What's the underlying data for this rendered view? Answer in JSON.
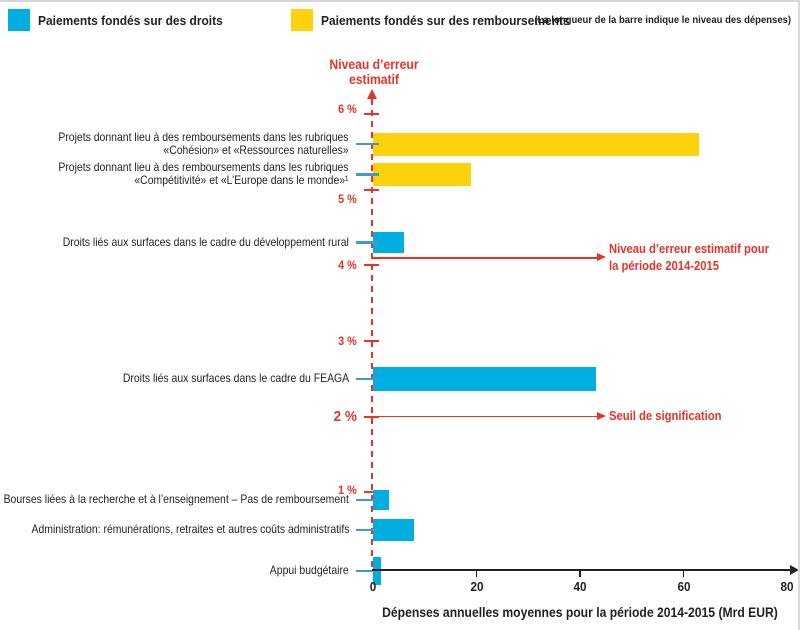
{
  "header": {
    "legend": [
      {
        "key": "droits",
        "label": "Paiements fondés sur des droits",
        "color": "#00AEDF"
      },
      {
        "key": "remboursements",
        "label": "Paiements fondés sur des remboursements",
        "color": "#FBD20B"
      }
    ],
    "note": "(La longueur de la barre indique le niveau des dépenses)"
  },
  "chart_data": {
    "type": "bar",
    "orientation": "horizontal",
    "xlabel": "Dépenses annuelles moyennes pour la période 2014-2015 (Mrd EUR)",
    "x_axis": {
      "min": 0,
      "max": 80,
      "tick_values": [
        0,
        20,
        40,
        60,
        80
      ],
      "unit": "Mrd EUR"
    },
    "y_axis": {
      "title_lines": [
        "Niveau d’erreur",
        "estimatif"
      ],
      "unit": "%",
      "min": 0,
      "max": 6,
      "ticks": [
        {
          "label": "6 %",
          "value": 6
        },
        {
          "label": "5 %",
          "value": 5
        },
        {
          "label": "4 %",
          "value": 4
        },
        {
          "label": "3 %",
          "value": 3
        },
        {
          "label": "2 %",
          "value": 2,
          "emphasis": true
        },
        {
          "label": "1 %",
          "value": 1
        }
      ]
    },
    "rows": [
      {
        "label_lines": [
          "Projets donnant lieu à des remboursements dans les rubriques",
          "«Cohésion» et «Ressources naturelles»"
        ],
        "category": "remboursements",
        "spending_mrd_eur": 63,
        "error_pct": 5.6
      },
      {
        "label_lines": [
          "Projets donnant lieu à des remboursements dans les rubriques",
          "«Compétitivité» et «L’Europe dans le monde»¹"
        ],
        "category": "remboursements",
        "spending_mrd_eur": 19,
        "error_pct": 5.2
      },
      {
        "label_lines": [
          "Droits liés aux surfaces dans le cadre du développement rural"
        ],
        "category": "droits",
        "spending_mrd_eur": 6,
        "error_pct": 4.3
      },
      {
        "label_lines": [
          "Droits liés aux surfaces dans le cadre du FEAGA"
        ],
        "category": "droits",
        "spending_mrd_eur": 43,
        "error_pct": 2.5
      },
      {
        "label_lines": [
          "Bourses liées à la recherche et à l’enseignement – Pas de remboursement"
        ],
        "category": "droits",
        "spending_mrd_eur": 3,
        "error_pct": 0.9
      },
      {
        "label_lines": [
          "Administration: rémunérations, retraites et autres coûts administratifs"
        ],
        "category": "droits",
        "spending_mrd_eur": 8,
        "error_pct": 0.5
      },
      {
        "label_lines": [
          "Appui budgétaire"
        ],
        "category": "droits",
        "spending_mrd_eur": 1.5,
        "error_pct": 0
      }
    ],
    "reference_lines": [
      {
        "label_lines": [
          "Niveau d’erreur estimatif pour",
          "la période 2014-2015"
        ],
        "value_pct": 4.1
      },
      {
        "label_lines": [
          "Seuil de signification"
        ],
        "value_pct": 2
      }
    ]
  },
  "colors": {
    "droits": "#00AEDF",
    "remboursements": "#FBD20B",
    "red": "#E8332A",
    "text": "#231F20",
    "row_tick": "#3D9BD4",
    "axis_black": "#231F20"
  }
}
